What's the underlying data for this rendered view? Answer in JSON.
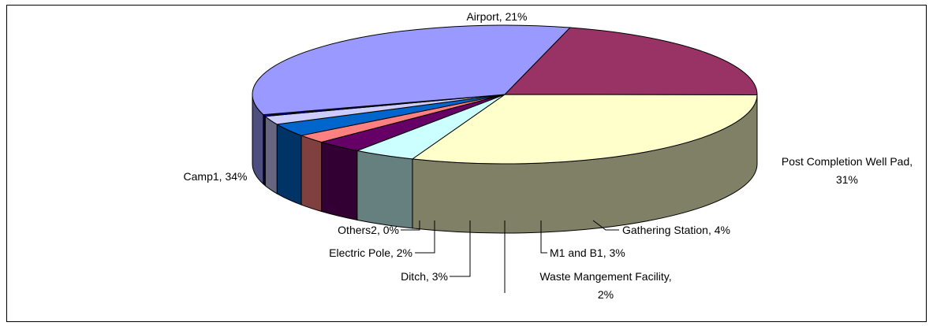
{
  "chart_data": {
    "type": "pie",
    "style": "3d-pie",
    "title": "",
    "slices": [
      {
        "label": "Airport",
        "value": 21,
        "pct_label": "21%",
        "top_color": "#993366",
        "side_color": "#4d1a33"
      },
      {
        "label": "Post Completion Well Pad",
        "value": 31,
        "pct_label": "31%",
        "top_color": "#ffffcc",
        "side_color": "#808066"
      },
      {
        "label": "Gathering Station",
        "value": 4,
        "pct_label": "4%",
        "top_color": "#ccffff",
        "side_color": "#668080"
      },
      {
        "label": "M1 and B1",
        "value": 3,
        "pct_label": "3%",
        "top_color": "#660066",
        "side_color": "#330033"
      },
      {
        "label": "Waste Mangement Facility",
        "value": 2,
        "pct_label": "2%",
        "top_color": "#ff8080",
        "side_color": "#804040"
      },
      {
        "label": "Ditch",
        "value": 3,
        "pct_label": "3%",
        "top_color": "#0066cc",
        "side_color": "#003366"
      },
      {
        "label": "Electric Pole",
        "value": 2,
        "pct_label": "2%",
        "top_color": "#ccccff",
        "side_color": "#666680"
      },
      {
        "label": "Others2",
        "value": 0.4,
        "pct_label": "0%",
        "top_color": "#000080",
        "side_color": "#000040"
      },
      {
        "label": "Camp1",
        "value": 34,
        "pct_label": "34%",
        "top_color": "#9999ff",
        "side_color": "#4d4d80"
      }
    ],
    "data_labels": [
      {
        "text": "Airport, 21%"
      },
      {
        "text": "Post Completion Well Pad,"
      },
      {
        "text": "31%"
      },
      {
        "text": "Gathering Station, 4%"
      },
      {
        "text": "M1 and B1, 3%"
      },
      {
        "text": "Waste Mangement Facility,"
      },
      {
        "text": "2%"
      },
      {
        "text": "Ditch, 3%"
      },
      {
        "text": "Electric Pole, 2%"
      },
      {
        "text": "Others2, 0%"
      },
      {
        "text": "Camp1, 34%"
      }
    ],
    "legend": "none",
    "border_color": "#000000",
    "background": "#ffffff"
  }
}
